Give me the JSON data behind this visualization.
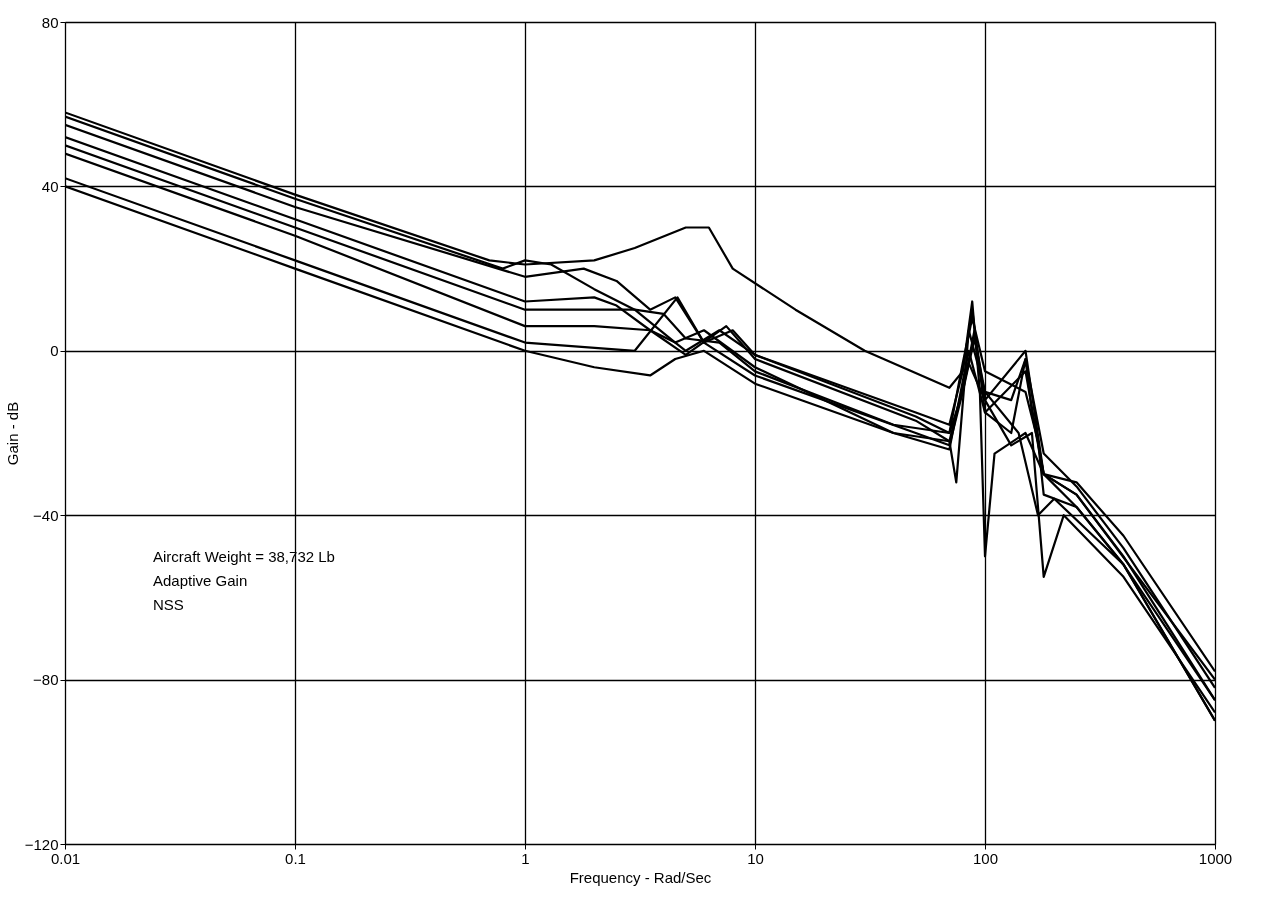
{
  "chart_data": {
    "type": "line",
    "xlabel": "Frequency - Rad/Sec",
    "ylabel": "Gain - dB",
    "log": "x",
    "grid": true,
    "legend": false,
    "marker": "none",
    "line_style": "solid",
    "xlim": [
      0.01,
      1000
    ],
    "xticks": [
      0.01,
      0.1,
      1,
      10,
      100,
      1000
    ],
    "ylim": [
      -120,
      80
    ],
    "yticks": [
      -120,
      -80,
      -40,
      0,
      40,
      80
    ],
    "annotations": [
      "Aircraft Weight = 38,732 Lb",
      "Adaptive Gain",
      "NSS"
    ],
    "series": [
      {
        "color": "#000000",
        "x": [
          0.01,
          0.1,
          0.7,
          1,
          2,
          3,
          5,
          6.3,
          8,
          15,
          30,
          70,
          80,
          88,
          95,
          100,
          130,
          150,
          160,
          180,
          250,
          400,
          1000
        ],
        "values": [
          58,
          38,
          22,
          21,
          22,
          25,
          30,
          30,
          20,
          10,
          0,
          -9,
          -5,
          10,
          -5,
          -15,
          -20,
          -2,
          -15,
          -30,
          -32,
          -45,
          -78
        ]
      },
      {
        "color": "#000000",
        "x": [
          0.01,
          0.1,
          0.8,
          1,
          1.3,
          2,
          3,
          4.5,
          5,
          7,
          10,
          50,
          70,
          80,
          88,
          95,
          100,
          110,
          150,
          180,
          250,
          400,
          1000
        ],
        "values": [
          57,
          37,
          20,
          22,
          21,
          15,
          10,
          2,
          0,
          5,
          -1,
          -15,
          -18,
          -5,
          12,
          -10,
          -50,
          -25,
          -20,
          -30,
          -35,
          -50,
          -85
        ]
      },
      {
        "color": "#000000",
        "x": [
          0.01,
          0.1,
          1,
          1.8,
          2.5,
          3.5,
          4.5,
          6,
          8,
          10,
          50,
          70,
          80,
          88,
          100,
          150,
          170,
          180,
          250,
          400,
          1000
        ],
        "values": [
          55,
          35,
          18,
          20,
          17,
          10,
          13,
          2,
          5,
          -1,
          -16,
          -20,
          -3,
          8,
          -5,
          -10,
          -22,
          -35,
          -38,
          -52,
          -90
        ]
      },
      {
        "color": "#000000",
        "x": [
          0.01,
          0.1,
          1,
          2,
          2.5,
          3.5,
          5,
          7.5,
          10,
          50,
          70,
          75,
          85,
          100,
          130,
          150,
          180,
          250,
          400,
          1000
        ],
        "values": [
          52,
          32,
          12,
          13,
          11,
          5,
          -1,
          6,
          -2,
          -17,
          -22,
          -32,
          5,
          -10,
          -12,
          -2,
          -25,
          -33,
          -48,
          -82
        ]
      },
      {
        "color": "#000000",
        "x": [
          0.01,
          0.1,
          1,
          3,
          4,
          5,
          7,
          10,
          40,
          70,
          80,
          90,
          100,
          130,
          160,
          180,
          220,
          400,
          1000
        ],
        "values": [
          50,
          30,
          10,
          10,
          9,
          3,
          2,
          -5,
          -18,
          -20,
          -10,
          5,
          -12,
          -23,
          -20,
          -55,
          -40,
          -55,
          -88
        ]
      },
      {
        "color": "#000000",
        "x": [
          0.01,
          0.1,
          1,
          2,
          3.5,
          4.5,
          6,
          10,
          40,
          70,
          85,
          100,
          150,
          180,
          250,
          400,
          1000
        ],
        "values": [
          48,
          28,
          6,
          6,
          5,
          2,
          5,
          -4,
          -20,
          -24,
          0,
          -15,
          -5,
          -30,
          -38,
          -52,
          -85
        ]
      },
      {
        "color": "#000000",
        "x": [
          0.01,
          0.1,
          1,
          3,
          4.6,
          6,
          10,
          50,
          70,
          80,
          90,
          100,
          140,
          170,
          200,
          400,
          1000
        ],
        "values": [
          42,
          22,
          2,
          0,
          13,
          2,
          -6,
          -20,
          -23,
          -10,
          3,
          -10,
          -20,
          -40,
          -36,
          -52,
          -90
        ]
      },
      {
        "color": "#000000",
        "x": [
          0.01,
          0.1,
          1,
          2,
          3.5,
          4.5,
          6,
          10,
          40,
          70,
          85,
          100,
          150,
          180,
          250,
          1000
        ],
        "values": [
          40,
          20,
          0,
          -4,
          -6,
          -2,
          0,
          -8,
          -20,
          -22,
          -3,
          -12,
          0,
          -30,
          -35,
          -80
        ]
      }
    ]
  }
}
